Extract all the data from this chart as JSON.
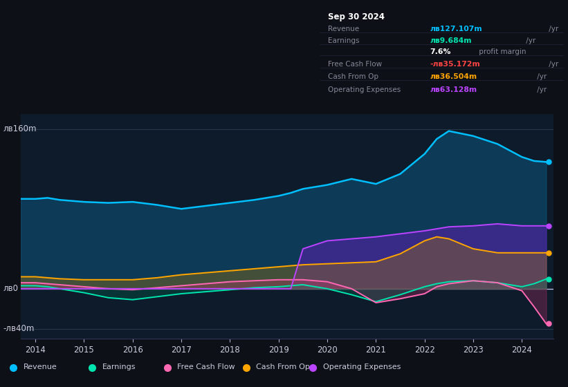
{
  "bg_color": "#0d1117",
  "plot_bg_color": "#0d1b2a",
  "y_label_160": "лв160m",
  "y_label_0": "лв0",
  "y_label_neg40": "-лв40m",
  "x_ticks": [
    2014,
    2015,
    2016,
    2017,
    2018,
    2019,
    2020,
    2021,
    2022,
    2023,
    2024
  ],
  "legend": [
    {
      "label": "Revenue",
      "color": "#00bfff"
    },
    {
      "label": "Earnings",
      "color": "#00e5b0"
    },
    {
      "label": "Free Cash Flow",
      "color": "#ff69b4"
    },
    {
      "label": "Cash From Op",
      "color": "#ffa500"
    },
    {
      "label": "Operating Expenses",
      "color": "#bb44ff"
    }
  ],
  "infobox": {
    "title": "Sep 30 2024",
    "rows": [
      {
        "label": "Revenue",
        "value": "лв127.107m",
        "value_color": "#00bfff",
        "suffix": " /yr"
      },
      {
        "label": "Earnings",
        "value": "лв9.684m",
        "value_color": "#00e5b0",
        "suffix": " /yr"
      },
      {
        "label": "",
        "value": "7.6%",
        "value_color": "#ffffff",
        "suffix": " profit margin"
      },
      {
        "label": "Free Cash Flow",
        "value": "-лв35.172m",
        "value_color": "#ff4444",
        "suffix": " /yr"
      },
      {
        "label": "Cash From Op",
        "value": "лв36.504m",
        "value_color": "#ffa500",
        "suffix": " /yr"
      },
      {
        "label": "Operating Expenses",
        "value": "лв63.128m",
        "value_color": "#bb44ff",
        "suffix": " /yr"
      }
    ]
  },
  "series": {
    "x": [
      2013.7,
      2014.0,
      2014.25,
      2014.5,
      2015.0,
      2015.5,
      2016.0,
      2016.5,
      2017.0,
      2017.5,
      2018.0,
      2018.5,
      2019.0,
      2019.25,
      2019.5,
      2020.0,
      2020.5,
      2021.0,
      2021.5,
      2022.0,
      2022.25,
      2022.5,
      2023.0,
      2023.5,
      2024.0,
      2024.25,
      2024.5
    ],
    "revenue": [
      90,
      90,
      91,
      89,
      87,
      86,
      87,
      84,
      80,
      83,
      86,
      89,
      93,
      96,
      100,
      104,
      110,
      105,
      115,
      135,
      150,
      158,
      153,
      145,
      132,
      128,
      127
    ],
    "earnings": [
      3,
      3,
      2,
      0,
      -4,
      -9,
      -11,
      -8,
      -5,
      -3,
      -1,
      1,
      2,
      3,
      4,
      0,
      -6,
      -13,
      -6,
      2,
      5,
      7,
      8,
      6,
      2,
      5,
      9.7
    ],
    "fcf": [
      6,
      6,
      5,
      4,
      2,
      0,
      -1,
      1,
      3,
      5,
      7,
      8,
      9,
      9,
      9,
      7,
      0,
      -14,
      -10,
      -5,
      2,
      5,
      8,
      6,
      -2,
      -18,
      -35
    ],
    "cashfromop": [
      12,
      12,
      11,
      10,
      9,
      9,
      9,
      11,
      14,
      16,
      18,
      20,
      22,
      23,
      24,
      25,
      26,
      27,
      35,
      48,
      52,
      50,
      40,
      36,
      36,
      36,
      36
    ],
    "opex": [
      0,
      0,
      0,
      0,
      0,
      0,
      0,
      0,
      0,
      0,
      0,
      0,
      0,
      0,
      40,
      48,
      50,
      52,
      55,
      58,
      60,
      62,
      63,
      65,
      63,
      63,
      63
    ]
  }
}
